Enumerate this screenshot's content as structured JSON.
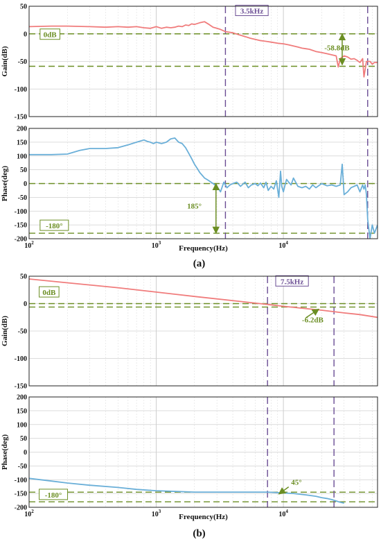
{
  "chart_data": [
    {
      "id": "a",
      "panel_label": "(a)",
      "xlabel": "Frequency(Hz)",
      "xlim": [
        100,
        55000
      ],
      "xscale": "log",
      "xticks": [
        {
          "value": 100,
          "base": "10",
          "exp": "2"
        },
        {
          "value": 1000,
          "base": "10",
          "exp": "3"
        },
        {
          "value": 10000,
          "base": "10",
          "exp": "4"
        }
      ],
      "plots": [
        {
          "id": "gain",
          "type": "line",
          "ylabel": "Gain(dB)",
          "ylim": [
            -150,
            50
          ],
          "yticks": [
            50,
            0,
            -50,
            -100,
            -150
          ],
          "series": [
            {
              "color": "#f07c7c",
              "x": [
                100,
                150,
                200,
                300,
                400,
                500,
                600,
                700,
                800,
                900,
                1000,
                1100,
                1200,
                1300,
                1400,
                1500,
                1600,
                1700,
                1800,
                1900,
                2000,
                2200,
                2400,
                2600,
                2800,
                3000,
                3200,
                3500,
                4000,
                4500,
                5000,
                5500,
                6000,
                6500,
                7000,
                7500,
                8000,
                9000,
                10000,
                11000,
                12000,
                13000,
                14000,
                15000,
                16000,
                17000,
                18000,
                20000,
                22000,
                24000,
                26000,
                27000,
                28000,
                30000,
                32000,
                34000,
                36000,
                38000,
                40000,
                42000,
                43000,
                45000,
                48000,
                50000,
                52000,
                55000
              ],
              "y": [
                13,
                14,
                14,
                13,
                12,
                13,
                12,
                13,
                11,
                10,
                13,
                10,
                12,
                11,
                12,
                14,
                13,
                16,
                15,
                18,
                17,
                20,
                22,
                17,
                12,
                10,
                8,
                4,
                2,
                -2,
                -5,
                -8,
                -10,
                -12,
                -13,
                -14,
                -15,
                -17,
                -18,
                -20,
                -22,
                -24,
                -26,
                -27,
                -28,
                -30,
                -32,
                -34,
                -36,
                -38,
                -40,
                -60,
                -45,
                -40,
                -42,
                -46,
                -45,
                -48,
                -52,
                -45,
                -78,
                -50,
                -50,
                -55,
                -52,
                -52
              ]
            }
          ],
          "hlines": [
            0,
            -58.8
          ],
          "vlines": [
            3500,
            46000
          ],
          "labels": [
            {
              "text": "0dB",
              "x": 122,
              "y": -5,
              "box": true,
              "style": "green"
            },
            {
              "text": "3.5kHz",
              "x": 4200,
              "y": 38,
              "box": true,
              "style": "purple"
            },
            {
              "text": "-58.8dB",
              "x": 21000,
              "y": -30,
              "box": false,
              "style": "green"
            }
          ],
          "arrows": [
            {
              "style": "double",
              "x": 29000,
              "y1": 0,
              "y2": -56
            }
          ]
        },
        {
          "id": "phase",
          "type": "line",
          "ylabel": "Phase(deg)",
          "ylim": [
            -200,
            200
          ],
          "yticks": [
            200,
            150,
            100,
            50,
            0,
            -50,
            -100,
            -150,
            -200
          ],
          "series": [
            {
              "color": "#6aafd8",
              "x": [
                100,
                150,
                200,
                250,
                300,
                400,
                500,
                600,
                700,
                800,
                850,
                900,
                950,
                1000,
                1100,
                1200,
                1300,
                1400,
                1500,
                1600,
                1700,
                1800,
                1900,
                2000,
                2100,
                2200,
                2300,
                2400,
                2500,
                2600,
                2800,
                3000,
                3200,
                3400,
                3600,
                3800,
                4000,
                4300,
                4600,
                5000,
                5300,
                5600,
                6000,
                6300,
                6600,
                7000,
                7300,
                7600,
                8000,
                8400,
                8800,
                9200,
                9500,
                9700,
                10000,
                10300,
                10600,
                11000,
                11500,
                12000,
                13000,
                14000,
                15000,
                16000,
                17000,
                18000,
                20000,
                22000,
                24000,
                26000,
                28000,
                29000,
                30000,
                32000,
                34000,
                36000,
                38000,
                40000,
                42000,
                43000,
                44000,
                45000,
                46000,
                48000,
                50000,
                52000,
                55000
              ],
              "y": [
                105,
                105,
                107,
                120,
                127,
                127,
                130,
                140,
                150,
                158,
                153,
                150,
                145,
                150,
                145,
                150,
                162,
                165,
                150,
                145,
                130,
                110,
                90,
                70,
                55,
                40,
                30,
                20,
                15,
                10,
                0,
                -10,
                -30,
                5,
                -15,
                -5,
                0,
                5,
                -10,
                5,
                -15,
                -5,
                0,
                -8,
                2,
                -15,
                5,
                -25,
                -10,
                -20,
                10,
                -50,
                45,
                -10,
                -30,
                -5,
                15,
                5,
                -5,
                20,
                -10,
                -15,
                -10,
                -20,
                -5,
                -15,
                0,
                -8,
                -5,
                -10,
                -5,
                70,
                -40,
                -30,
                -15,
                -10,
                -5,
                -30,
                -5,
                -20,
                -5,
                -40,
                -130,
                -200,
                -150,
                -180,
                -150
              ]
            }
          ],
          "hlines": [
            0,
            -180
          ],
          "vlines": [
            3500,
            46000
          ],
          "labels": [
            {
              "text": "-180°",
              "x": 122,
              "y": -160,
              "box": true,
              "style": "green"
            },
            {
              "text": "185°",
              "x": 1750,
              "y": -90,
              "box": false,
              "style": "green"
            }
          ],
          "arrows": [
            {
              "style": "double",
              "x": 2950,
              "y1": 0,
              "y2": -180
            }
          ]
        }
      ]
    },
    {
      "id": "b",
      "panel_label": "(b)",
      "xlabel": "Frequency(Hz)",
      "xlim": [
        100,
        55000
      ],
      "xscale": "log",
      "xticks": [
        {
          "value": 100,
          "base": "10",
          "exp": "2"
        },
        {
          "value": 1000,
          "base": "10",
          "exp": "3"
        },
        {
          "value": 10000,
          "base": "10",
          "exp": "4"
        }
      ],
      "plots": [
        {
          "id": "gain",
          "type": "line",
          "ylabel": "Gain(dB)",
          "ylim": [
            -150,
            50
          ],
          "yticks": [
            50,
            0,
            -50,
            -100,
            -150
          ],
          "series": [
            {
              "color": "#f07c7c",
              "x": [
                100,
                200,
                500,
                1000,
                2000,
                5000,
                7500,
                10000,
                20000,
                30000,
                40000,
                55000
              ],
              "y": [
                45,
                38,
                29,
                21,
                13,
                3,
                -1.5,
                -5,
                -12,
                -17,
                -20,
                -25
              ]
            }
          ],
          "hlines": [
            0,
            -6.2
          ],
          "vlines": [
            7500,
            25000
          ],
          "labels": [
            {
              "text": "0dB",
              "x": 120,
              "y": 17,
              "box": true,
              "style": "green"
            },
            {
              "text": "7.5kHz",
              "x": 8700,
              "y": 37,
              "box": true,
              "style": "purple"
            },
            {
              "text": "-6.2dB",
              "x": 14000,
              "y": -34,
              "box": false,
              "style": "green"
            }
          ],
          "arrows": [
            {
              "style": "single",
              "x": 15000,
              "y": -26,
              "tx": 19000,
              "ty": -10
            }
          ]
        },
        {
          "id": "phase",
          "type": "line",
          "ylabel": "Phase(deg)",
          "ylim": [
            -200,
            200
          ],
          "yticks": [
            200,
            150,
            100,
            50,
            0,
            -50,
            -100,
            -150,
            -200
          ],
          "series": [
            {
              "color": "#6aafd8",
              "x": [
                100,
                150,
                200,
                300,
                500,
                700,
                1000,
                1500,
                2000,
                3000,
                5000,
                7500,
                10000,
                12000,
                15000,
                18000,
                20000,
                22000,
                24000,
                26000,
                28000,
                30000
              ],
              "y": [
                -95,
                -105,
                -112,
                -120,
                -128,
                -135,
                -140,
                -143,
                -145,
                -145,
                -145,
                -145,
                -148,
                -150,
                -155,
                -160,
                -165,
                -168,
                -172,
                -177,
                -182,
                -185
              ]
            }
          ],
          "hlines": [
            -145,
            -180
          ],
          "vlines": [
            7500,
            25000
          ],
          "labels": [
            {
              "text": "-180°",
              "x": 120,
              "y": -162,
              "box": true,
              "style": "green"
            },
            {
              "text": "45°",
              "x": 11500,
              "y": -118,
              "box": false,
              "style": "green"
            }
          ],
          "arrows": [
            {
              "style": "single",
              "x": 11000,
              "y": -126,
              "tx": 9200,
              "ty": -152
            }
          ]
        }
      ]
    }
  ]
}
